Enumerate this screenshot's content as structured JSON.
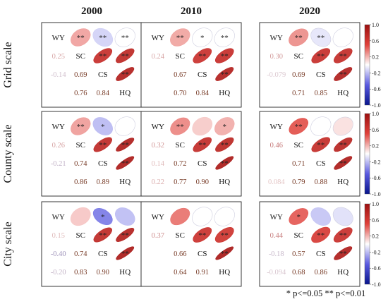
{
  "chart_data": {
    "type": "heatmap",
    "variables": [
      "WY",
      "SC",
      "CS",
      "HQ"
    ],
    "column_titles": [
      "2000",
      "2010",
      "2020"
    ],
    "row_titles": [
      "Grid scale",
      "County scale",
      "City scale"
    ],
    "colorbar": {
      "ticks": [
        "1.0",
        "0.6",
        "0.2",
        "-0.2",
        "-0.6",
        "-1.0"
      ],
      "range": [
        -1,
        1
      ],
      "colors": {
        "negative": "#08148c",
        "zero": "#ffffff",
        "positive": "#9c1010"
      }
    },
    "footnote": "* p<=0.05  ** p<=0.01",
    "panels": [
      {
        "row": 0,
        "col": 0,
        "r": [
          0.25,
          -0.14,
          0.0,
          0.69,
          0.76,
          0.84
        ],
        "labels": [
          "0.25",
          "-0.14",
          "",
          "0.69",
          "0.76",
          "0.84"
        ],
        "sig": [
          "**",
          "**",
          "**",
          "**",
          "**",
          "**"
        ]
      },
      {
        "row": 0,
        "col": 1,
        "r": [
          0.24,
          0.0,
          0.0,
          0.67,
          0.7,
          0.84
        ],
        "labels": [
          "0.24",
          "",
          "",
          "0.67",
          "0.70",
          "0.84"
        ],
        "sig": [
          "**",
          "*",
          "**",
          "**",
          "**",
          "**"
        ]
      },
      {
        "row": 0,
        "col": 2,
        "r": [
          0.3,
          -0.079,
          0.0,
          0.69,
          0.71,
          0.85
        ],
        "labels": [
          "0.30",
          "-0.079",
          "",
          "0.69",
          "0.71",
          "0.85"
        ],
        "sig": [
          "**",
          "**",
          "",
          "**",
          "**",
          "**"
        ]
      },
      {
        "row": 1,
        "col": 0,
        "r": [
          0.26,
          -0.21,
          0.0,
          0.74,
          0.86,
          0.89
        ],
        "labels": [
          "0.26",
          "-0.21",
          "",
          "0.74",
          "0.86",
          "0.89"
        ],
        "sig": [
          "**",
          "*",
          "",
          "**",
          "**",
          "**"
        ]
      },
      {
        "row": 1,
        "col": 1,
        "r": [
          0.32,
          0.14,
          0.22,
          0.72,
          0.77,
          0.9
        ],
        "labels": [
          "0.32",
          "0.14",
          "0.22",
          "0.72",
          "0.77",
          "0.90"
        ],
        "sig": [
          "**",
          "",
          "*",
          "**",
          "**",
          "**"
        ]
      },
      {
        "row": 1,
        "col": 2,
        "r": [
          0.46,
          0.0,
          0.084,
          0.71,
          0.79,
          0.88
        ],
        "labels": [
          "0.46",
          "",
          "0.084",
          "0.71",
          "0.79",
          "0.88"
        ],
        "sig": [
          "**",
          "",
          "",
          "**",
          "**",
          "**"
        ]
      },
      {
        "row": 2,
        "col": 0,
        "r": [
          0.15,
          -0.4,
          -0.2,
          0.74,
          0.83,
          0.9
        ],
        "labels": [
          "0.15",
          "-0.40",
          "-0.20",
          "0.74",
          "0.83",
          "0.90"
        ],
        "sig": [
          "",
          "*",
          "",
          "**",
          "**",
          "**"
        ]
      },
      {
        "row": 2,
        "col": 1,
        "r": [
          0.37,
          0.0,
          0.0,
          0.66,
          0.64,
          0.91
        ],
        "labels": [
          "0.37",
          "",
          "",
          "0.66",
          "0.64",
          "0.91"
        ],
        "sig": [
          "",
          "",
          "",
          "**",
          "**",
          "**"
        ]
      },
      {
        "row": 2,
        "col": 2,
        "r": [
          0.44,
          -0.18,
          -0.094,
          0.57,
          0.68,
          0.86
        ],
        "labels": [
          "0.44",
          "-0.18",
          "-0.094",
          "0.57",
          "0.68",
          "0.86"
        ],
        "sig": [
          "*",
          "",
          "",
          "**",
          "**",
          "**"
        ]
      }
    ]
  }
}
